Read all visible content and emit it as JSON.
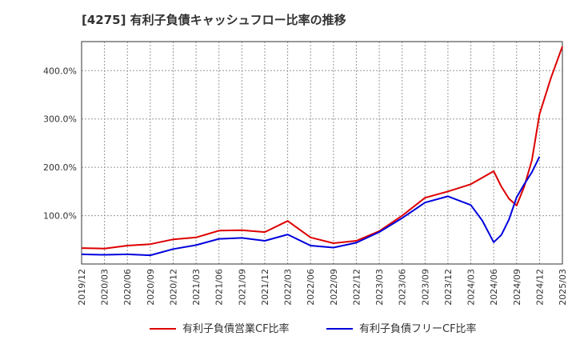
{
  "chart_data": {
    "type": "line",
    "title": "[4275]  有利子負債キャッシュフロー比率の推移",
    "xlabel": "",
    "ylabel": "",
    "ylim": [
      0,
      460
    ],
    "y_ticks": [
      100,
      200,
      300,
      400
    ],
    "y_tick_labels": [
      "100.0%",
      "200.0%",
      "300.0%",
      "400.0%"
    ],
    "x_tick_labels": [
      "2019/12",
      "2020/03",
      "2020/06",
      "2020/09",
      "2020/12",
      "2021/03",
      "2021/06",
      "2021/09",
      "2021/12",
      "2022/03",
      "2022/06",
      "2022/09",
      "2022/12",
      "2023/03",
      "2023/06",
      "2023/09",
      "2023/12",
      "2024/03",
      "2024/06",
      "2024/09",
      "2024/12",
      "2025/03"
    ],
    "grid": true,
    "legend_position": "bottom",
    "series": [
      {
        "name": "有利子負債営業CF比率",
        "color": "#dd0000",
        "values": [
          33,
          32,
          38,
          41,
          51,
          55,
          69,
          70,
          66,
          89,
          55,
          43,
          48,
          68,
          100,
          137,
          150,
          165,
          192,
          160,
          135,
          121,
          160,
          215,
          310,
          385,
          450
        ]
      },
      {
        "name": "有利子負債フリーCF比率",
        "color": "#0000dd",
        "values": [
          20,
          19,
          20,
          18,
          31,
          39,
          52,
          54,
          48,
          61,
          38,
          34,
          44,
          66,
          95,
          127,
          140,
          122,
          90,
          45,
          60,
          92,
          138,
          165,
          190,
          222
        ]
      }
    ],
    "x_points": {
      "red": [
        0,
        1,
        2,
        3,
        4,
        5,
        6,
        7,
        8,
        9,
        10,
        11,
        12,
        13,
        14,
        15,
        16,
        17,
        18,
        18.333,
        18.667,
        19,
        19.333,
        19.667,
        20,
        20.5,
        21
      ],
      "blue": [
        0,
        1,
        2,
        3,
        4,
        5,
        6,
        7,
        8,
        9,
        10,
        11,
        12,
        13,
        14,
        15,
        16,
        17,
        17.5,
        18,
        18.333,
        18.667,
        19,
        19.333,
        19.667,
        20
      ]
    }
  }
}
